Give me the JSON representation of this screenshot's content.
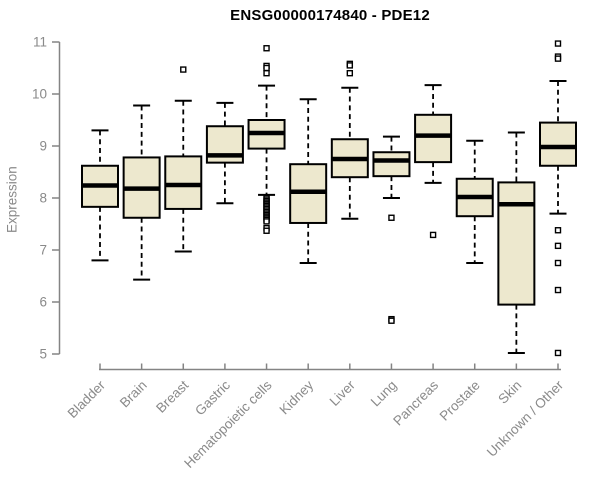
{
  "chart_data": {
    "type": "boxplot",
    "title": "ENSG00000174840 - PDE12",
    "ylabel": "Expression",
    "xlabel": "",
    "ylim": [
      5,
      11
    ],
    "yticks": [
      5,
      6,
      7,
      8,
      9,
      10,
      11
    ],
    "grid": false,
    "legend": false,
    "categories": [
      "Bladder",
      "Brain",
      "Breast",
      "Gastric",
      "Hematopoietic cells",
      "Kidney",
      "Liver",
      "Lung",
      "Pancreas",
      "Prostate",
      "Skin",
      "Unknown / Other"
    ],
    "series": [
      {
        "name": "Bladder",
        "whisker_low": 6.8,
        "q1": 7.83,
        "median": 8.24,
        "q3": 8.62,
        "whisker_high": 9.3,
        "outliers": []
      },
      {
        "name": "Brain",
        "whisker_low": 6.43,
        "q1": 7.62,
        "median": 8.18,
        "q3": 8.78,
        "whisker_high": 9.78,
        "outliers": []
      },
      {
        "name": "Breast",
        "whisker_low": 6.97,
        "q1": 7.79,
        "median": 8.25,
        "q3": 8.8,
        "whisker_high": 9.87,
        "outliers": [
          10.47
        ]
      },
      {
        "name": "Gastric",
        "whisker_low": 7.9,
        "q1": 8.68,
        "median": 8.82,
        "q3": 9.38,
        "whisker_high": 9.83,
        "outliers": []
      },
      {
        "name": "Hematopoietic cells",
        "whisker_low": 8.06,
        "q1": 8.95,
        "median": 9.25,
        "q3": 9.5,
        "whisker_high": 10.16,
        "outliers": [
          10.88,
          10.54,
          10.5,
          10.4,
          8.0,
          7.97,
          7.94,
          7.91,
          7.88,
          7.85,
          7.82,
          7.79,
          7.76,
          7.73,
          7.7,
          7.67,
          7.64,
          7.61,
          7.58,
          7.55,
          7.42,
          7.37
        ]
      },
      {
        "name": "Kidney",
        "whisker_low": 6.75,
        "q1": 7.52,
        "median": 8.12,
        "q3": 8.65,
        "whisker_high": 9.9,
        "outliers": []
      },
      {
        "name": "Liver",
        "whisker_low": 7.6,
        "q1": 8.4,
        "median": 8.75,
        "q3": 9.13,
        "whisker_high": 10.12,
        "outliers": [
          10.58,
          10.55,
          10.4
        ]
      },
      {
        "name": "Lung",
        "whisker_low": 8.0,
        "q1": 8.42,
        "median": 8.72,
        "q3": 8.88,
        "whisker_high": 9.18,
        "outliers": [
          7.62,
          5.67,
          5.64
        ]
      },
      {
        "name": "Pancreas",
        "whisker_low": 8.29,
        "q1": 8.69,
        "median": 9.2,
        "q3": 9.6,
        "whisker_high": 10.17,
        "outliers": [
          7.29
        ]
      },
      {
        "name": "Prostate",
        "whisker_low": 6.75,
        "q1": 7.65,
        "median": 8.02,
        "q3": 8.37,
        "whisker_high": 9.1,
        "outliers": []
      },
      {
        "name": "Skin",
        "whisker_low": 5.02,
        "q1": 5.95,
        "median": 7.88,
        "q3": 8.3,
        "whisker_high": 9.26,
        "outliers": []
      },
      {
        "name": "Unknown / Other",
        "whisker_low": 7.7,
        "q1": 8.62,
        "median": 8.98,
        "q3": 9.45,
        "whisker_high": 10.25,
        "outliers": [
          10.97,
          10.72,
          10.68,
          7.38,
          7.08,
          6.75,
          6.23,
          5.02
        ]
      }
    ]
  },
  "style": {
    "background": "#ffffff",
    "box_fill": "#EDE8CE",
    "box_stroke": "#000000",
    "median_color": "#000000",
    "whisker_color": "#000000",
    "outlier_stroke": "#000000",
    "axis_color": "#848484",
    "tick_label_color": "#8a8a8a",
    "title_color": "#000000"
  }
}
